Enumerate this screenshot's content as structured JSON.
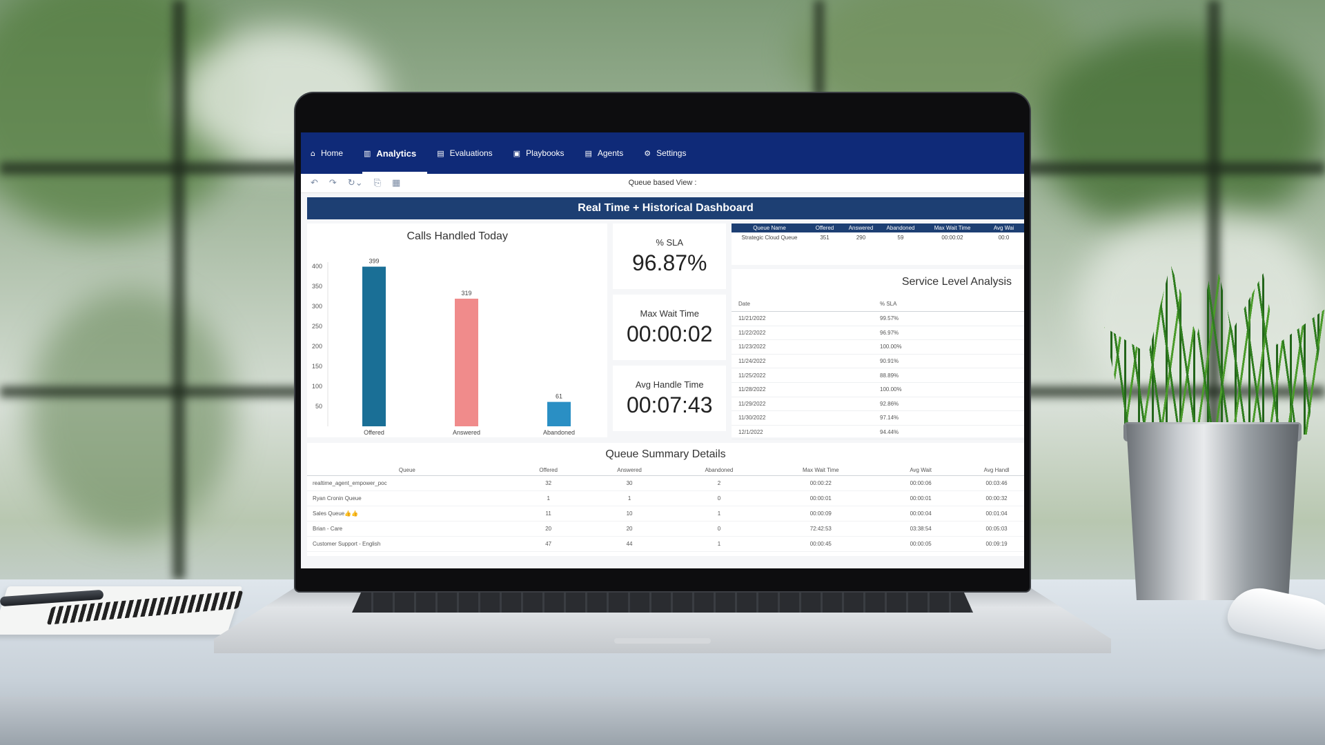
{
  "nav": {
    "items": [
      {
        "label": "Home",
        "icon": "home-icon",
        "glyph": "⌂"
      },
      {
        "label": "Analytics",
        "icon": "chart-icon",
        "glyph": "▥"
      },
      {
        "label": "Evaluations",
        "icon": "clipboard-icon",
        "glyph": "▤"
      },
      {
        "label": "Playbooks",
        "icon": "book-icon",
        "glyph": "▣"
      },
      {
        "label": "Agents",
        "icon": "agent-icon",
        "glyph": "▤"
      },
      {
        "label": "Settings",
        "icon": "gear-icon",
        "glyph": "⚙"
      }
    ],
    "active": "Analytics"
  },
  "toolbar": {
    "title": "Queue based View :",
    "icons": [
      {
        "name": "undo-icon",
        "glyph": "↶"
      },
      {
        "name": "redo-icon",
        "glyph": "↷"
      },
      {
        "name": "refresh-icon",
        "glyph": "↻⌄"
      },
      {
        "name": "revert-icon",
        "glyph": "⎘"
      },
      {
        "name": "pages-icon",
        "glyph": "▦"
      }
    ]
  },
  "dashboard": {
    "title": "Real Time + Historical Dashboard",
    "kpis": [
      {
        "label": "% SLA",
        "value": "96.87%"
      },
      {
        "label": "Max Wait Time",
        "value": "00:00:02"
      },
      {
        "label": "Avg Handle Time",
        "value": "00:07:43"
      }
    ]
  },
  "queue_table": {
    "headers": [
      "Queue Name",
      "Offered",
      "Answered",
      "Abandoned",
      "Max Wait Time",
      "Avg Wai"
    ],
    "rows": [
      [
        "Strategic Cloud Queue",
        "351",
        "290",
        "59",
        "00:00:02",
        "00:0"
      ]
    ]
  },
  "service_level": {
    "title": "Service Level Analysis",
    "headers": [
      "Date",
      "% SLA"
    ],
    "rows": [
      [
        "11/21/2022",
        "99.57%"
      ],
      [
        "11/22/2022",
        "96.97%"
      ],
      [
        "11/23/2022",
        "100.00%"
      ],
      [
        "11/24/2022",
        "90.91%"
      ],
      [
        "11/25/2022",
        "88.89%"
      ],
      [
        "11/28/2022",
        "100.00%"
      ],
      [
        "11/29/2022",
        "92.86%"
      ],
      [
        "11/30/2022",
        "97.14%"
      ],
      [
        "12/1/2022",
        "94.44%"
      ]
    ]
  },
  "queue_summary": {
    "title": "Queue Summary Details",
    "headers": [
      "Queue",
      "Offered",
      "Answered",
      "Abandoned",
      "Max Wait Time",
      "Avg Wait",
      "Avg Handl"
    ],
    "rows": [
      [
        "realtime_agent_empower_poc",
        "32",
        "30",
        "2",
        "00:00:22",
        "00:00:06",
        "00:03:46"
      ],
      [
        "Ryan Cronin Queue",
        "1",
        "1",
        "0",
        "00:00:01",
        "00:00:01",
        "00:00:32"
      ],
      [
        "Sales Queue👍👍",
        "11",
        "10",
        "1",
        "00:00:09",
        "00:00:04",
        "00:01:04"
      ],
      [
        "Brian - Care",
        "20",
        "20",
        "0",
        "72:42:53",
        "03:38:54",
        "00:05:03"
      ],
      [
        "Customer Support - English",
        "47",
        "44",
        "1",
        "00:00:45",
        "00:00:05",
        "00:09:19"
      ]
    ]
  },
  "chart_data": {
    "type": "bar",
    "title": "Calls Handled Today",
    "categories": [
      "Offered",
      "Answered",
      "Abandoned"
    ],
    "values": [
      399,
      319,
      61
    ],
    "colors": [
      "#1a6f96",
      "#f08b8b",
      "#2a8fc4"
    ],
    "yticks": [
      50,
      100,
      150,
      200,
      250,
      300,
      350,
      400
    ],
    "ylim": [
      0,
      400
    ],
    "grid": false,
    "legend": "none"
  },
  "colors": {
    "nav_bg": "#0f2a78",
    "banner_bg": "#1d3f73"
  }
}
